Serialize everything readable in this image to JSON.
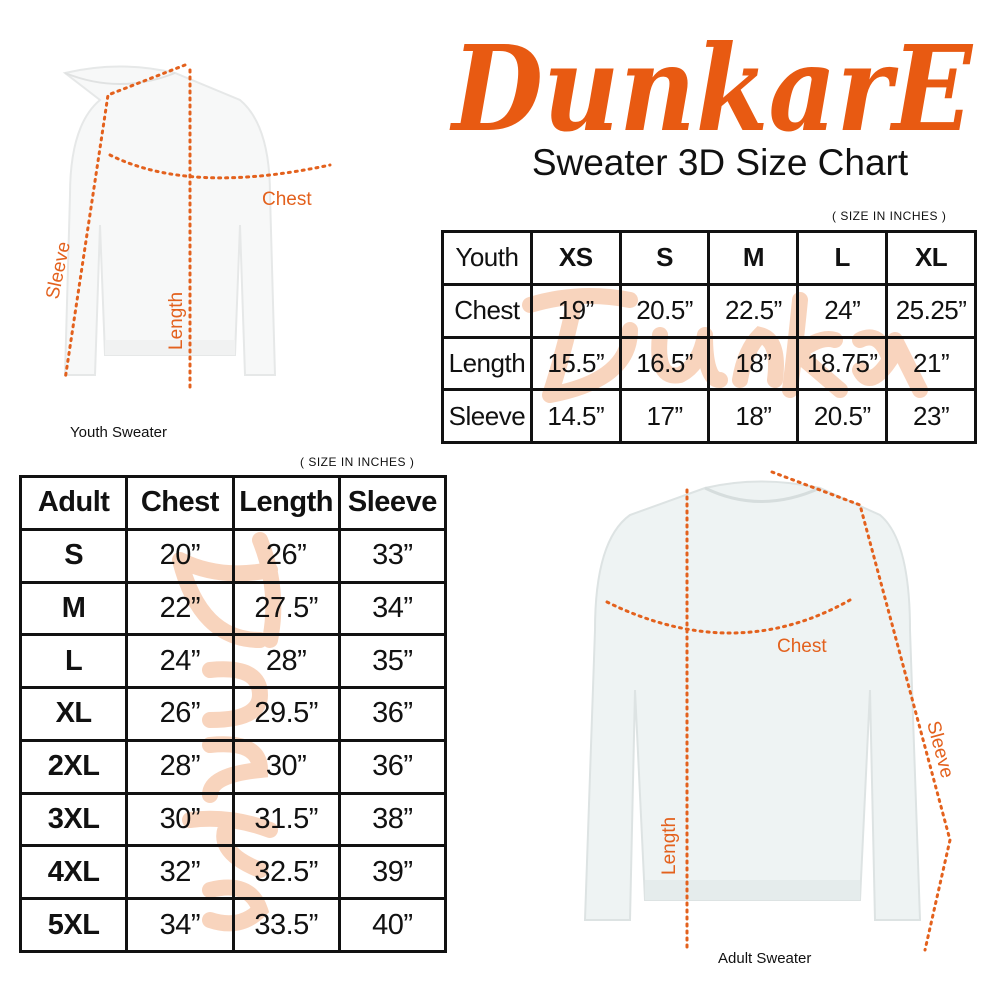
{
  "brand": {
    "logo_text": "DunkarE",
    "color": "#e85a12"
  },
  "title": "Sweater 3D Size Chart",
  "units_note": "( SIZE IN INCHES )",
  "youth": {
    "caption": "Youth Sweater",
    "labels": {
      "chest": "Chest",
      "length": "Length",
      "sleeve": "Sleeve"
    },
    "header": [
      "Youth",
      "XS",
      "S",
      "M",
      "L",
      "XL"
    ],
    "rows": [
      [
        "Chest",
        "19”",
        "20.5”",
        "22.5”",
        "24”",
        "25.25”"
      ],
      [
        "Length",
        "15.5”",
        "16.5”",
        "18”",
        "18.75”",
        "21”"
      ],
      [
        "Sleeve",
        "14.5”",
        "17”",
        "18”",
        "20.5”",
        "23”"
      ]
    ]
  },
  "adult": {
    "caption": "Adult Sweater",
    "labels": {
      "chest": "Chest",
      "length": "Length",
      "sleeve": "Sleeve"
    },
    "header": [
      "Adult",
      "Chest",
      "Length",
      "Sleeve"
    ],
    "rows": [
      [
        "S",
        "20”",
        "26”",
        "33”"
      ],
      [
        "M",
        "22”",
        "27.5”",
        "34”"
      ],
      [
        "L",
        "24”",
        "28”",
        "35”"
      ],
      [
        "XL",
        "26”",
        "29.5”",
        "36”"
      ],
      [
        "2XL",
        "28”",
        "30”",
        "36”"
      ],
      [
        "3XL",
        "30”",
        "31.5”",
        "38”"
      ],
      [
        "4XL",
        "32”",
        "32.5”",
        "39”"
      ],
      [
        "5XL",
        "34”",
        "33.5”",
        "40”"
      ]
    ]
  }
}
